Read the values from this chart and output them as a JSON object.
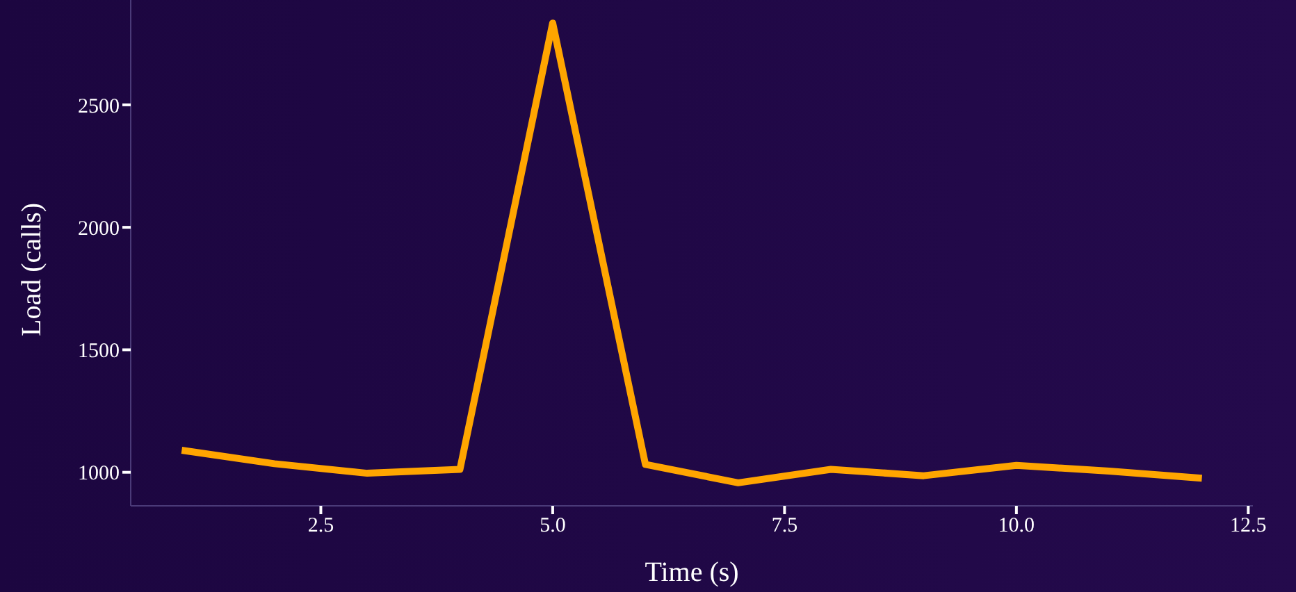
{
  "chart_data": {
    "type": "line",
    "xlabel": "Time (s)",
    "ylabel": "Load (calls)",
    "x": [
      1,
      2,
      3,
      4,
      5,
      6,
      7,
      8,
      9,
      10,
      11,
      12
    ],
    "series": [
      {
        "color": "#ffa500",
        "values": [
          1090,
          1035,
          996,
          1012,
          2834,
          1032,
          957,
          1012,
          986,
          1028,
          1005,
          976
        ]
      }
    ],
    "xticks": [
      2.5,
      {
        "value": 5,
        "label": "5.0"
      },
      7.5,
      {
        "value": 10,
        "label": "10.0"
      },
      12.5
    ],
    "xlim": [
      0.45,
      12.55
    ],
    "ylim": [
      863,
      2928
    ],
    "yticks": [
      1000,
      1500,
      2000,
      2500
    ],
    "grid": false,
    "legend": false,
    "marker": "none",
    "line_style": "solid"
  }
}
